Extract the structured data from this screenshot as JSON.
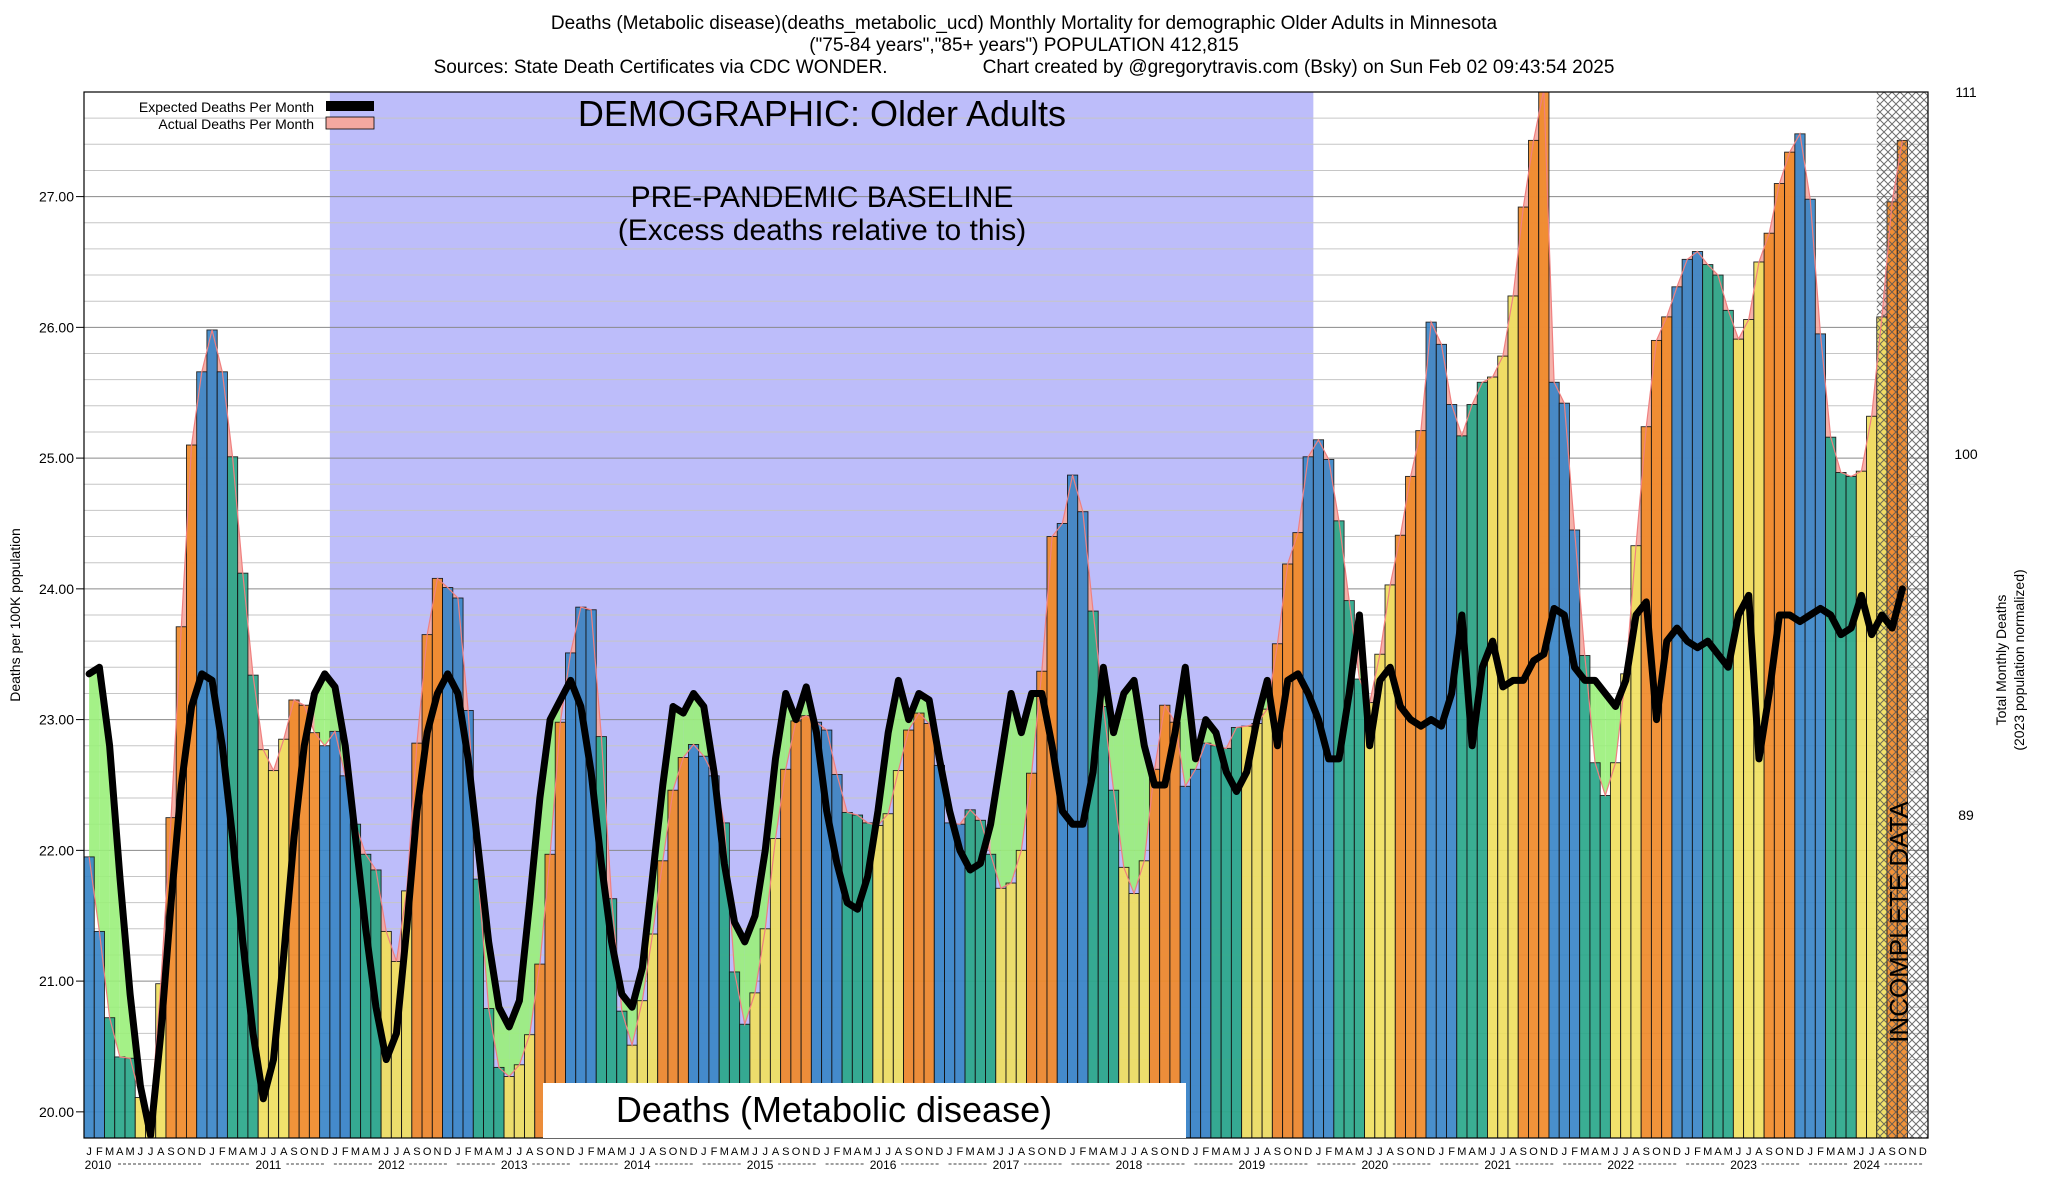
{
  "header": {
    "line1": "Deaths (Metabolic disease)(deaths_metabolic_ucd) Monthly Mortality for demographic Older Adults in Minnesota",
    "line2": "(\"75-84 years\",\"85+ years\") POPULATION 412,815",
    "sources": "Sources: State Death Certificates via CDC WONDER.",
    "created_by": "Chart created by @gregorytravis.com (Bsky) on Sun Feb 02 09:43:54 2025"
  },
  "chart_data": {
    "type": "bar",
    "title": "DEMOGRAPHIC: Older Adults",
    "baseline_label_line1": "PRE-PANDEMIC BASELINE",
    "baseline_label_line2": "(Excess deaths relative to this)",
    "bottom_label": "Deaths (Metabolic disease)",
    "incomplete_label": "INCOMPLETE DATA",
    "ylabel": "Deaths per 100K population",
    "ylabel_right_1": "Total Monthly Deaths",
    "ylabel_right_2": "(2023 population normalized)",
    "ylim": [
      19.8,
      27.8
    ],
    "yticks": [
      "20.00",
      "21.00",
      "22.00",
      "23.00",
      "24.00",
      "25.00",
      "26.00",
      "27.00"
    ],
    "yticks_right": [
      "89",
      "100",
      "111"
    ],
    "month_letters": [
      "J",
      "F",
      "M",
      "A",
      "M",
      "J",
      "J",
      "A",
      "S",
      "O",
      "N",
      "D"
    ],
    "years": [
      "2010",
      "2011",
      "2012",
      "2013",
      "2014",
      "2015",
      "2016",
      "2017",
      "2018",
      "2019",
      "2020",
      "2021",
      "2022",
      "2023",
      "2024"
    ],
    "legend": [
      {
        "name": "Expected Deaths Per Month",
        "color": "#000000"
      },
      {
        "name": "Actual Deaths Per Month",
        "color": "#f4a8a0"
      }
    ],
    "baseline_period": [
      "2012-01",
      "2019-12"
    ],
    "incomplete_period": [
      "2024-08",
      "2024-12"
    ],
    "season_colors": {
      "winter": "#3a86c8",
      "spring": "#2aa88a",
      "summer": "#f0e060",
      "fall": "#f08a2a"
    },
    "series": [
      {
        "name": "Actual Deaths Per Month",
        "values": [
          21.95,
          21.38,
          20.72,
          20.42,
          20.41,
          20.11,
          19.95,
          20.98,
          22.25,
          23.71,
          25.1,
          25.66,
          25.98,
          25.66,
          25.01,
          24.12,
          23.34,
          22.77,
          22.61,
          22.85,
          23.15,
          23.11,
          22.9,
          22.8,
          22.91,
          22.57,
          22.2,
          21.97,
          21.85,
          21.38,
          21.15,
          21.69,
          22.82,
          23.65,
          24.08,
          24.01,
          23.93,
          23.07,
          21.78,
          20.79,
          20.34,
          20.27,
          20.36,
          20.59,
          21.13,
          21.97,
          22.98,
          23.51,
          23.86,
          23.84,
          22.87,
          21.63,
          20.77,
          20.51,
          20.85,
          21.36,
          21.92,
          22.46,
          22.71,
          22.81,
          22.72,
          22.57,
          22.21,
          21.07,
          20.67,
          20.91,
          21.4,
          22.09,
          22.62,
          22.99,
          23.03,
          22.98,
          22.92,
          22.58,
          22.29,
          22.27,
          22.21,
          22.19,
          22.28,
          22.61,
          22.92,
          23.05,
          22.97,
          22.65,
          22.21,
          22.2,
          22.31,
          22.23,
          21.97,
          21.71,
          21.75,
          22.0,
          22.59,
          23.37,
          24.4,
          24.5,
          24.87,
          24.59,
          23.83,
          23.1,
          22.46,
          21.87,
          21.67,
          21.92,
          22.62,
          23.11,
          22.98,
          22.49,
          22.62,
          22.82,
          22.8,
          22.78,
          22.94,
          22.95,
          22.97,
          23.08,
          23.58,
          24.19,
          24.43,
          25.01,
          25.14,
          24.99,
          24.52,
          23.91,
          23.31,
          23.13,
          23.5,
          24.03,
          24.41,
          24.86,
          25.21,
          26.04,
          25.87,
          25.41,
          25.17,
          25.41,
          25.58,
          25.62,
          25.78,
          26.24,
          26.92,
          27.43,
          27.82,
          25.58,
          25.42,
          24.45,
          23.49,
          22.67,
          22.42,
          22.67,
          23.35,
          24.33,
          25.24,
          25.9,
          26.08,
          26.31,
          26.52,
          26.58,
          26.48,
          26.4,
          26.13,
          25.91,
          26.06,
          26.5,
          26.72,
          27.1,
          27.34,
          27.48,
          26.98,
          25.95,
          25.16,
          24.89,
          24.86,
          24.9,
          25.32,
          26.08,
          26.96,
          27.43
        ]
      },
      {
        "name": "Expected Deaths Per Month",
        "values": [
          23.35,
          23.4,
          22.8,
          21.8,
          20.9,
          20.2,
          19.82,
          20.6,
          21.6,
          22.5,
          23.1,
          23.35,
          23.3,
          22.8,
          22.1,
          21.3,
          20.6,
          20.1,
          20.4,
          21.2,
          22.1,
          22.8,
          23.2,
          23.35,
          23.25,
          22.8,
          22.1,
          21.4,
          20.8,
          20.4,
          20.6,
          21.4,
          22.3,
          22.9,
          23.2,
          23.35,
          23.2,
          22.7,
          22.0,
          21.3,
          20.8,
          20.65,
          20.85,
          21.6,
          22.4,
          23.0,
          23.15,
          23.3,
          23.1,
          22.6,
          21.9,
          21.3,
          20.9,
          20.8,
          21.1,
          21.8,
          22.5,
          23.1,
          23.05,
          23.2,
          23.1,
          22.6,
          21.9,
          21.45,
          21.3,
          21.5,
          22.0,
          22.7,
          23.2,
          23.0,
          23.25,
          22.9,
          22.3,
          21.9,
          21.6,
          21.55,
          21.8,
          22.3,
          22.9,
          23.3,
          23.0,
          23.2,
          23.15,
          22.7,
          22.3,
          22.0,
          21.85,
          21.9,
          22.2,
          22.7,
          23.2,
          22.9,
          23.2,
          23.2,
          22.8,
          22.3,
          22.2,
          22.2,
          22.6,
          23.4,
          22.9,
          23.2,
          23.3,
          22.8,
          22.5,
          22.5,
          22.9,
          23.4,
          22.7,
          23.0,
          22.9,
          22.6,
          22.45,
          22.6,
          23.0,
          23.3,
          22.8,
          23.3,
          23.35,
          23.2,
          23.0,
          22.7,
          22.7,
          23.2,
          23.8,
          22.8,
          23.3,
          23.4,
          23.1,
          23.0,
          22.95,
          23.0,
          22.95,
          23.2,
          23.8,
          22.8,
          23.4,
          23.6,
          23.25,
          23.3,
          23.3,
          23.45,
          23.5,
          23.85,
          23.8,
          23.4,
          23.3,
          23.3,
          23.2,
          23.1,
          23.3,
          23.8,
          23.9,
          23.0,
          23.6,
          23.7,
          23.6,
          23.55,
          23.6,
          23.5,
          23.4,
          23.8,
          23.95,
          22.7,
          23.2,
          23.8,
          23.8,
          23.75,
          23.8,
          23.85,
          23.8,
          23.65,
          23.7,
          23.95,
          23.65,
          23.8,
          23.7,
          24.0
        ]
      }
    ]
  }
}
